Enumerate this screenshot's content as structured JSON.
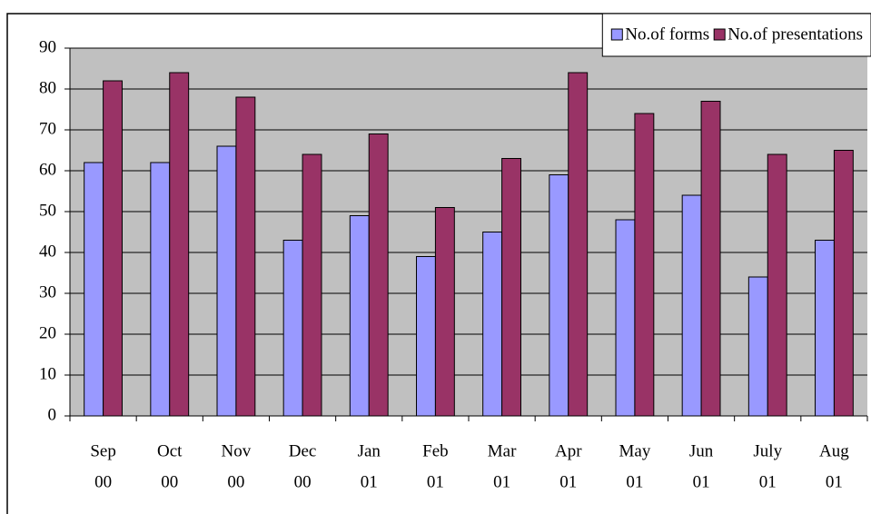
{
  "chart_data": {
    "type": "bar",
    "categories": [
      [
        "Sep",
        "00"
      ],
      [
        "Oct",
        "00"
      ],
      [
        "Nov",
        "00"
      ],
      [
        "Dec",
        "00"
      ],
      [
        "Jan",
        "01"
      ],
      [
        "Feb",
        "01"
      ],
      [
        "Mar",
        "01"
      ],
      [
        "Apr",
        "01"
      ],
      [
        "May",
        "01"
      ],
      [
        "Jun",
        "01"
      ],
      [
        "July",
        "01"
      ],
      [
        "Aug",
        "01"
      ]
    ],
    "series": [
      {
        "name": "No.of forms",
        "color": "#9999ff",
        "values": [
          62,
          62,
          66,
          43,
          49,
          39,
          45,
          59,
          48,
          54,
          34,
          43
        ]
      },
      {
        "name": "No.of presentations",
        "color": "#993366",
        "values": [
          82,
          84,
          78,
          64,
          69,
          51,
          63,
          84,
          74,
          77,
          64,
          65
        ]
      }
    ],
    "ylim": [
      0,
      90
    ],
    "yticks": [
      0,
      10,
      20,
      30,
      40,
      50,
      60,
      70,
      80,
      90
    ],
    "grid": true,
    "legend": "top-right"
  }
}
